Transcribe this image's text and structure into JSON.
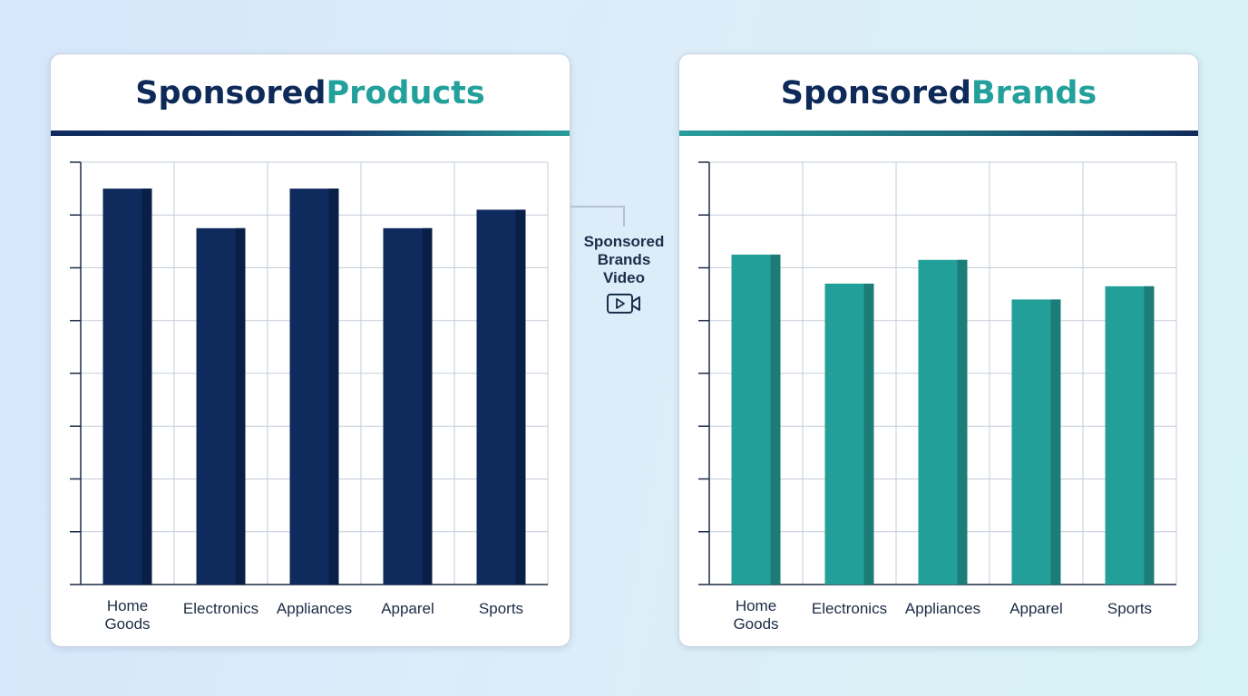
{
  "connector": {
    "label_lines": [
      "Sponsored",
      "Brands",
      "Video"
    ],
    "icon": "video-camera-icon"
  },
  "chart_data": [
    {
      "type": "bar",
      "title_parts": [
        "Sponsored",
        "Products"
      ],
      "categories": [
        [
          "Home",
          "Goods"
        ],
        [
          "Electronics"
        ],
        [
          "Appliances"
        ],
        [
          "Apparel"
        ],
        [
          "Sports"
        ]
      ],
      "values": [
        7.5,
        6.75,
        7.5,
        6.75,
        7.1
      ],
      "ylim": [
        0,
        8
      ],
      "grid": true,
      "color": "#0f2a5c",
      "shade": "#0a1f47"
    },
    {
      "type": "bar",
      "title_parts": [
        "Sponsored",
        "Brands"
      ],
      "categories": [
        [
          "Home",
          "Goods"
        ],
        [
          "Electronics"
        ],
        [
          "Appliances"
        ],
        [
          "Apparel"
        ],
        [
          "Sports"
        ]
      ],
      "values": [
        6.25,
        5.7,
        6.15,
        5.4,
        5.65
      ],
      "ylim": [
        0,
        8
      ],
      "grid": true,
      "color": "#239f9a",
      "shade": "#1b7c78"
    }
  ]
}
